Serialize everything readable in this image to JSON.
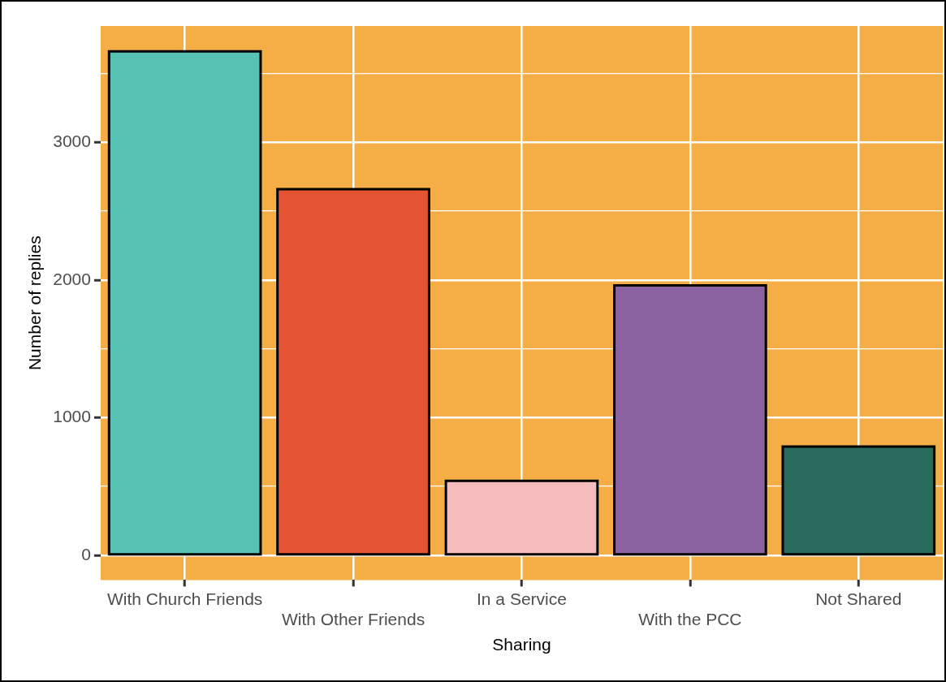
{
  "chart_data": {
    "type": "bar",
    "xlabel": "Sharing",
    "ylabel": "Number of replies",
    "categories": [
      "With Church Friends",
      "With Other Friends",
      "In a Service",
      "With the PCC",
      "Not Shared"
    ],
    "values": [
      3660,
      2660,
      540,
      1960,
      790
    ],
    "colors": [
      "#57c2b4",
      "#e55432",
      "#f5bcbd",
      "#8b62a0",
      "#27695a"
    ],
    "ylim": [
      -180,
      3845
    ],
    "yticks": [
      0,
      {
        "value": 500,
        "label": null
      },
      1000,
      {
        "value": 1500,
        "label": null
      },
      2000,
      {
        "value": 2500,
        "label": null
      },
      3000,
      {
        "value": 3500,
        "label": null
      }
    ],
    "grid": true,
    "legend": false
  }
}
